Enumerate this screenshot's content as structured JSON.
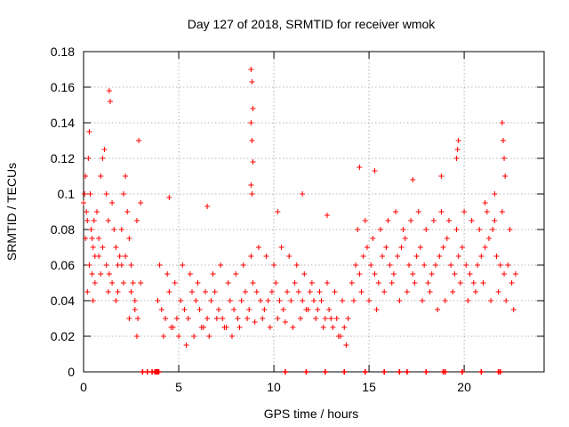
{
  "chart_data": {
    "type": "scatter",
    "title": "Day 127 of 2018, SRMTID for receiver wmok",
    "xlabel": "GPS time / hours",
    "ylabel": "SRMTID / TECUs",
    "xlim": [
      0,
      24.2
    ],
    "ylim": [
      0,
      0.18
    ],
    "x_ticks": [
      0,
      5,
      10,
      15,
      20
    ],
    "x_tick_labels": [
      "0",
      "5",
      "10",
      "15",
      "20"
    ],
    "y_ticks": [
      0,
      0.02,
      0.04,
      0.06,
      0.08,
      0.1,
      0.12,
      0.14,
      0.16,
      0.18
    ],
    "y_tick_labels": [
      "0",
      "0.02",
      "0.04",
      "0.06",
      "0.08",
      "0.1",
      "0.12",
      "0.14",
      "0.16",
      "0.18"
    ],
    "grid": true,
    "marker": "+",
    "color": "#ff0000",
    "series": [
      {
        "name": "SRMTID",
        "x": [
          0.0,
          0.05,
          0.1,
          0.15,
          0.2,
          0.25,
          0.3,
          0.35,
          0.4,
          0.45,
          0.5,
          0.55,
          0.6,
          0.7,
          0.8,
          0.9,
          1.0,
          1.1,
          1.2,
          1.3,
          1.35,
          1.4,
          1.5,
          1.6,
          1.7,
          1.8,
          1.9,
          2.0,
          2.1,
          2.2,
          2.3,
          2.4,
          2.5,
          2.6,
          2.7,
          2.8,
          2.9,
          3.0,
          0.1,
          0.3,
          0.45,
          0.6,
          0.8,
          1.0,
          1.2,
          1.35,
          1.5,
          1.8,
          2.0,
          2.2,
          2.5,
          2.7,
          2.85,
          3.0,
          0.2,
          0.5,
          0.9,
          1.3,
          1.7,
          2.1,
          2.4,
          2.8,
          3.9,
          4.1,
          4.3,
          4.5,
          4.7,
          4.9,
          5.1,
          5.3,
          5.5,
          5.7,
          5.9,
          6.1,
          6.3,
          6.5,
          6.7,
          6.9,
          7.1,
          7.3,
          7.5,
          7.7,
          7.9,
          8.1,
          8.3,
          8.5,
          8.7,
          8.9,
          9.1,
          9.3,
          9.5,
          9.7,
          9.9,
          10.1,
          10.3,
          10.5,
          10.7,
          10.9,
          11.1,
          11.3,
          11.5,
          11.7,
          11.9,
          12.1,
          12.3,
          12.5,
          12.7,
          12.9,
          13.1,
          13.3,
          13.5,
          13.7,
          13.9,
          4.0,
          4.4,
          4.8,
          5.2,
          5.6,
          6.0,
          6.4,
          6.8,
          7.2,
          7.6,
          8.0,
          8.4,
          8.8,
          9.2,
          9.6,
          10.0,
          10.4,
          10.8,
          11.2,
          11.6,
          12.0,
          12.4,
          12.8,
          13.2,
          13.6,
          4.2,
          4.6,
          5.0,
          5.4,
          5.8,
          6.2,
          6.6,
          7.0,
          7.4,
          7.8,
          8.2,
          8.6,
          9.0,
          9.4,
          9.8,
          10.2,
          10.6,
          11.0,
          11.4,
          11.8,
          12.2,
          12.6,
          13.0,
          13.4,
          13.8,
          8.8,
          8.85,
          8.9,
          8.8,
          8.85,
          8.9,
          8.8,
          8.85,
          4.5,
          6.5,
          10.2,
          11.5,
          12.8,
          14.1,
          14.3,
          14.5,
          14.7,
          14.9,
          15.1,
          15.3,
          15.5,
          15.7,
          15.9,
          16.1,
          16.3,
          16.5,
          16.7,
          16.9,
          17.1,
          17.3,
          17.5,
          17.7,
          17.9,
          18.1,
          18.3,
          18.5,
          18.7,
          18.9,
          19.1,
          19.3,
          19.5,
          19.7,
          19.9,
          20.1,
          20.3,
          20.5,
          20.7,
          20.9,
          21.1,
          21.3,
          21.5,
          21.7,
          21.9,
          22.1,
          22.3,
          22.5,
          22.7,
          14.2,
          14.6,
          15.0,
          15.4,
          15.8,
          16.2,
          16.6,
          17.0,
          17.4,
          17.8,
          18.2,
          18.6,
          19.0,
          19.4,
          19.8,
          20.2,
          20.6,
          21.0,
          21.4,
          21.8,
          22.2,
          22.6,
          14.4,
          14.8,
          15.2,
          15.6,
          16.0,
          16.4,
          16.8,
          17.2,
          17.6,
          18.0,
          18.4,
          18.8,
          19.2,
          19.6,
          20.0,
          20.4,
          20.8,
          21.2,
          21.6,
          22.0,
          22.4,
          14.5,
          15.3,
          17.3,
          18.8,
          19.6,
          19.7,
          19.65,
          22.0,
          22.05,
          22.1,
          22.15,
          21.6,
          21.1
        ],
        "y": [
          0.095,
          0.1,
          0.11,
          0.09,
          0.085,
          0.12,
          0.135,
          0.1,
          0.08,
          0.075,
          0.07,
          0.085,
          0.065,
          0.09,
          0.075,
          0.11,
          0.12,
          0.125,
          0.1,
          0.085,
          0.158,
          0.152,
          0.095,
          0.08,
          0.07,
          0.06,
          0.065,
          0.08,
          0.1,
          0.11,
          0.09,
          0.075,
          0.06,
          0.05,
          0.04,
          0.085,
          0.13,
          0.095,
          0.075,
          0.06,
          0.055,
          0.05,
          0.065,
          0.07,
          0.06,
          0.055,
          0.05,
          0.045,
          0.06,
          0.065,
          0.045,
          0.035,
          0.03,
          0.05,
          0.045,
          0.04,
          0.055,
          0.045,
          0.04,
          0.05,
          0.03,
          0.02,
          0.04,
          0.035,
          0.03,
          0.045,
          0.025,
          0.03,
          0.04,
          0.035,
          0.03,
          0.045,
          0.04,
          0.035,
          0.025,
          0.03,
          0.04,
          0.045,
          0.035,
          0.03,
          0.025,
          0.04,
          0.035,
          0.03,
          0.04,
          0.045,
          0.035,
          0.05,
          0.045,
          0.04,
          0.035,
          0.04,
          0.045,
          0.05,
          0.04,
          0.035,
          0.045,
          0.04,
          0.05,
          0.045,
          0.04,
          0.035,
          0.045,
          0.04,
          0.035,
          0.04,
          0.03,
          0.035,
          0.025,
          0.03,
          0.02,
          0.025,
          0.03,
          0.06,
          0.055,
          0.05,
          0.06,
          0.055,
          0.05,
          0.045,
          0.055,
          0.06,
          0.05,
          0.055,
          0.06,
          0.065,
          0.07,
          0.065,
          0.06,
          0.07,
          0.065,
          0.06,
          0.055,
          0.05,
          0.045,
          0.05,
          0.045,
          0.04,
          0.02,
          0.025,
          0.02,
          0.015,
          0.02,
          0.025,
          0.02,
          0.03,
          0.025,
          0.02,
          0.025,
          0.03,
          0.028,
          0.03,
          0.025,
          0.03,
          0.028,
          0.025,
          0.03,
          0.035,
          0.03,
          0.025,
          0.03,
          0.02,
          0.015,
          0.17,
          0.163,
          0.148,
          0.14,
          0.13,
          0.118,
          0.105,
          0.1,
          0.098,
          0.093,
          0.09,
          0.1,
          0.088,
          0.05,
          0.06,
          0.055,
          0.065,
          0.07,
          0.06,
          0.055,
          0.05,
          0.065,
          0.07,
          0.06,
          0.055,
          0.065,
          0.07,
          0.075,
          0.06,
          0.055,
          0.065,
          0.07,
          0.06,
          0.05,
          0.055,
          0.06,
          0.065,
          0.07,
          0.075,
          0.06,
          0.055,
          0.065,
          0.07,
          0.06,
          0.055,
          0.05,
          0.06,
          0.065,
          0.07,
          0.075,
          0.08,
          0.065,
          0.06,
          0.055,
          0.06,
          0.05,
          0.055,
          0.04,
          0.045,
          0.04,
          0.035,
          0.045,
          0.05,
          0.04,
          0.045,
          0.05,
          0.04,
          0.045,
          0.035,
          0.04,
          0.045,
          0.05,
          0.04,
          0.045,
          0.05,
          0.04,
          0.045,
          0.04,
          0.035,
          0.08,
          0.085,
          0.075,
          0.08,
          0.085,
          0.09,
          0.08,
          0.085,
          0.09,
          0.08,
          0.085,
          0.09,
          0.085,
          0.08,
          0.09,
          0.085,
          0.08,
          0.09,
          0.085,
          0.09,
          0.08,
          0.115,
          0.113,
          0.108,
          0.11,
          0.12,
          0.13,
          0.125,
          0.14,
          0.13,
          0.12,
          0.11,
          0.1,
          0.095
        ]
      }
    ],
    "baseline_x": [
      3.1,
      3.35,
      3.6,
      3.75,
      3.8,
      3.85,
      3.9,
      3.95,
      10.6,
      11.7,
      12.7,
      13.7,
      14.8,
      15.8,
      16.6,
      17.0,
      18.0,
      18.9,
      19.0,
      19.9,
      20.9,
      21.8,
      21.9
    ]
  }
}
